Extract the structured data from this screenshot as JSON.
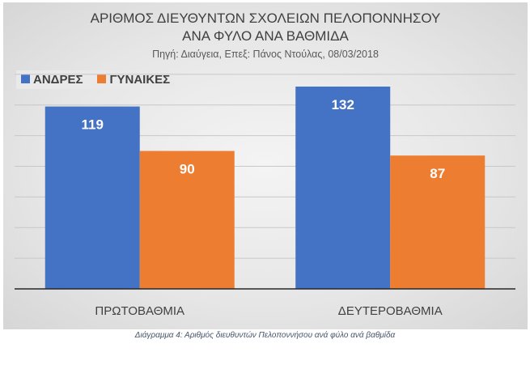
{
  "chart_data": {
    "type": "bar",
    "title": "ΑΡΙΘΜΟΣ ΔΙΕΥΘΥΝΤΩΝ ΣΧΟΛΕΙΩΝ ΠΕΛΟΠΟΝΝΗΣΟΥ",
    "title_line2": "ΑΝΑ ΦΥΛΟ ΑΝΑ ΒΑΘΜΙΔΑ",
    "subtitle": "Πηγή: Διαύγεια, Επεξ: Πάνος Ντούλας, 08/03/2018",
    "categories": [
      "ΠΡΩΤΟΒΑΘΜΙΑ",
      "ΔΕΥΤΕΡΟΒΑΘΜΙΑ"
    ],
    "series": [
      {
        "name": "ΑΝΔΡΕΣ",
        "values": [
          119,
          132
        ],
        "color": "#4472c4"
      },
      {
        "name": "ΓΥΝΑΙΚΕΣ",
        "values": [
          90,
          87
        ],
        "color": "#ed7d31"
      }
    ],
    "ylim": [
      0,
      140
    ],
    "grid": true,
    "legend": "top-left",
    "xlabel": "",
    "ylabel": ""
  },
  "caption": "Διάγραμμα 4: Αριθμός διευθυντών Πελοποννήσου ανά φύλο ανά βαθμίδα"
}
